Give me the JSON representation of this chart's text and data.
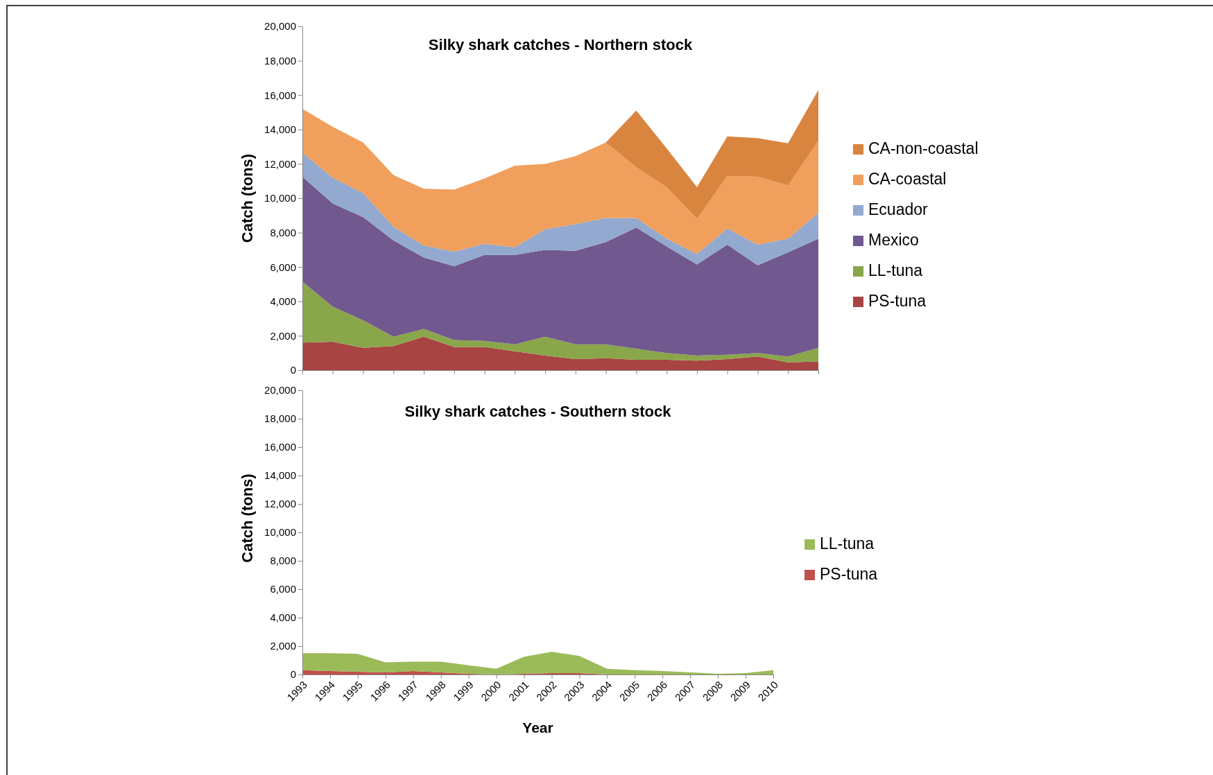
{
  "chart_data": [
    {
      "type": "area",
      "stacked": true,
      "title": "Silky shark catches - Northern stock",
      "ylabel": "Catch (tons)",
      "legend": "right",
      "tick_labels": "y",
      "categories": [
        null,
        null,
        null,
        null,
        null,
        null,
        null,
        null,
        null,
        null,
        null,
        null,
        null,
        null,
        null,
        null,
        null,
        null
      ],
      "ylim": [
        0,
        20000
      ],
      "yticks": [
        0,
        {
          "value": 2000,
          "label": "2,000"
        },
        {
          "value": 4000,
          "label": "4,000"
        },
        {
          "value": 6000,
          "label": "6,000"
        },
        {
          "value": 8000,
          "label": "8,000"
        },
        {
          "value": 10000,
          "label": "10,000"
        },
        {
          "value": 12000,
          "label": "12,000"
        },
        {
          "value": 14000,
          "label": "14,000"
        },
        {
          "value": 16000,
          "label": "16,000"
        },
        {
          "value": 18000,
          "label": "18,000"
        },
        {
          "value": 20000,
          "label": "20,000"
        }
      ],
      "series": [
        {
          "name": "PS-tuna",
          "color": "#a84442",
          "values": [
            1600,
            1650,
            1300,
            1400,
            1950,
            1350,
            1350,
            1100,
            850,
            650,
            700,
            600,
            600,
            550,
            650,
            800,
            450,
            500
          ]
        },
        {
          "name": "LL-tuna",
          "color": "#8aa64b",
          "values": [
            3550,
            2050,
            1600,
            550,
            450,
            400,
            350,
            400,
            1100,
            850,
            800,
            650,
            400,
            300,
            250,
            200,
            350,
            800
          ]
        },
        {
          "name": "Mexico",
          "color": "#71588f",
          "values": [
            6100,
            6000,
            6000,
            5600,
            4150,
            4300,
            5000,
            5200,
            5050,
            5450,
            5950,
            7050,
            6200,
            5300,
            6400,
            5100,
            6050,
            6350
          ]
        },
        {
          "name": "Ecuador",
          "color": "#93a9cf",
          "values": [
            1400,
            1500,
            1400,
            800,
            700,
            850,
            650,
            450,
            1200,
            1550,
            1400,
            550,
            450,
            600,
            950,
            1200,
            800,
            1500
          ]
        },
        {
          "name": "CA-coastal",
          "color": "#f0a05c",
          "values": [
            2550,
            2950,
            2950,
            3000,
            3300,
            3600,
            3800,
            4750,
            3800,
            3950,
            4400,
            2950,
            3000,
            2050,
            3050,
            3950,
            3100,
            4200
          ]
        },
        {
          "name": "CA-non-coastal",
          "color": "#d9843f",
          "values": [
            0,
            0,
            0,
            0,
            0,
            0,
            0,
            0,
            0,
            0,
            0,
            3300,
            2250,
            1850,
            2300,
            2250,
            2450,
            2950
          ]
        }
      ]
    },
    {
      "type": "area",
      "stacked": true,
      "title": "Silky shark catches - Southern stock",
      "xlabel": "Year",
      "ylabel": "Catch (tons)",
      "legend": "right",
      "categories": [
        "1993",
        "1994",
        "1995",
        "1996",
        "1997",
        "1998",
        "1999",
        "2000",
        "2001",
        "2002",
        "2003",
        "2004",
        "2005",
        "2006",
        "2007",
        "2008",
        "2009",
        "2010"
      ],
      "ylim": [
        0,
        20000
      ],
      "yticks": [
        0,
        {
          "value": 2000,
          "label": "2,000"
        },
        {
          "value": 4000,
          "label": "4,000"
        },
        {
          "value": 6000,
          "label": "6,000"
        },
        {
          "value": 8000,
          "label": "8,000"
        },
        {
          "value": 10000,
          "label": "10,000"
        },
        {
          "value": 12000,
          "label": "12,000"
        },
        {
          "value": 14000,
          "label": "14,000"
        },
        {
          "value": 16000,
          "label": "16,000"
        },
        {
          "value": 18000,
          "label": "18,000"
        },
        {
          "value": 20000,
          "label": "20,000"
        }
      ],
      "series": [
        {
          "name": "PS-tuna",
          "color": "#c0504d",
          "values": [
            300,
            250,
            200,
            150,
            250,
            150,
            50,
            0,
            50,
            100,
            100,
            0,
            0,
            0,
            0,
            0,
            0,
            0
          ]
        },
        {
          "name": "LL-tuna",
          "color": "#9bbb59",
          "values": [
            1200,
            1250,
            1250,
            700,
            650,
            750,
            600,
            400,
            1200,
            1500,
            1200,
            400,
            300,
            250,
            150,
            50,
            100,
            300
          ]
        }
      ]
    }
  ]
}
